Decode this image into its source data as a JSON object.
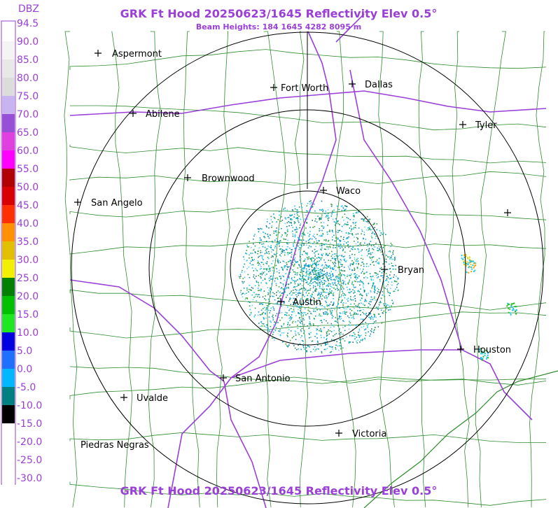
{
  "header": {
    "title": "GRK Ft Hood 20250623/1645 Reflectivity Elev 0.5°",
    "subtitle": "Beam Heights: 184 1645 4282 8095 m"
  },
  "footer": {
    "title": "GRK Ft Hood 20250623/1645 Reflectivity Elev 0.5°"
  },
  "legend": {
    "unit": "DBZ",
    "labels": [
      "94.5",
      "90.0",
      "85.0",
      "80.0",
      "75.0",
      "70.0",
      "65.0",
      "60.0",
      "55.0",
      "50.0",
      "45.0",
      "40.0",
      "35.0",
      "30.0",
      "25.0",
      "20.0",
      "15.0",
      "10.0",
      "5.0",
      "0.0",
      "-5.0",
      "-10.0",
      "-15.0",
      "-20.0",
      "-25.0",
      "-30.0"
    ]
  },
  "cities": [
    "Aspermont",
    "Fort Worth",
    "Dallas",
    "Abilene",
    "Tyler",
    "Brownwood",
    "Waco",
    "San Angelo",
    "Bryan",
    "Austin",
    "Houston",
    "San Antonio",
    "Uvalde",
    "Victoria",
    "Piedras Negras"
  ]
}
